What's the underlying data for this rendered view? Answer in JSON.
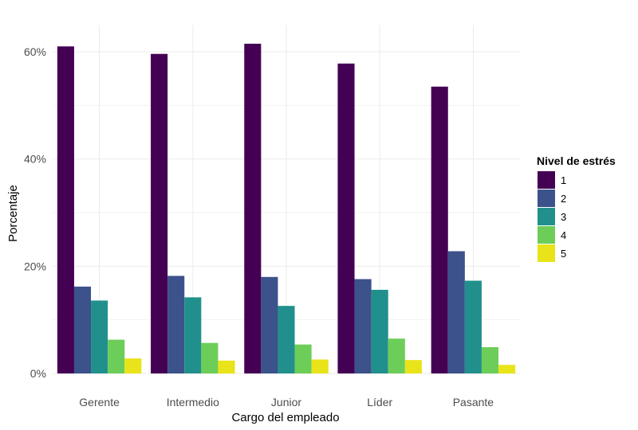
{
  "chart_data": {
    "type": "bar",
    "xlabel": "Cargo del empleado",
    "ylabel": "Porcentaje",
    "categories": [
      "Gerente",
      "Intermedio",
      "Junior",
      "Líder",
      "Pasante"
    ],
    "series": [
      {
        "name": "1",
        "color": "#440154",
        "values": [
          61.0,
          59.6,
          61.5,
          57.8,
          53.5
        ]
      },
      {
        "name": "2",
        "color": "#3B528B",
        "values": [
          16.2,
          18.2,
          18.0,
          17.6,
          22.8
        ]
      },
      {
        "name": "3",
        "color": "#21908C",
        "values": [
          13.6,
          14.2,
          12.6,
          15.6,
          17.3
        ]
      },
      {
        "name": "4",
        "color": "#6DCD59",
        "values": [
          6.3,
          5.7,
          5.4,
          6.5,
          4.9
        ]
      },
      {
        "name": "5",
        "color": "#E8E419",
        "values": [
          2.8,
          2.4,
          2.6,
          2.5,
          1.6
        ]
      }
    ],
    "ylim": [
      0,
      65
    ],
    "yticks": [
      0,
      20,
      40,
      60
    ],
    "ytick_labels": [
      "0%",
      "20%",
      "40%",
      "60%"
    ],
    "legend": {
      "title": "Nivel de estrés",
      "position": "right"
    },
    "grid": true
  }
}
